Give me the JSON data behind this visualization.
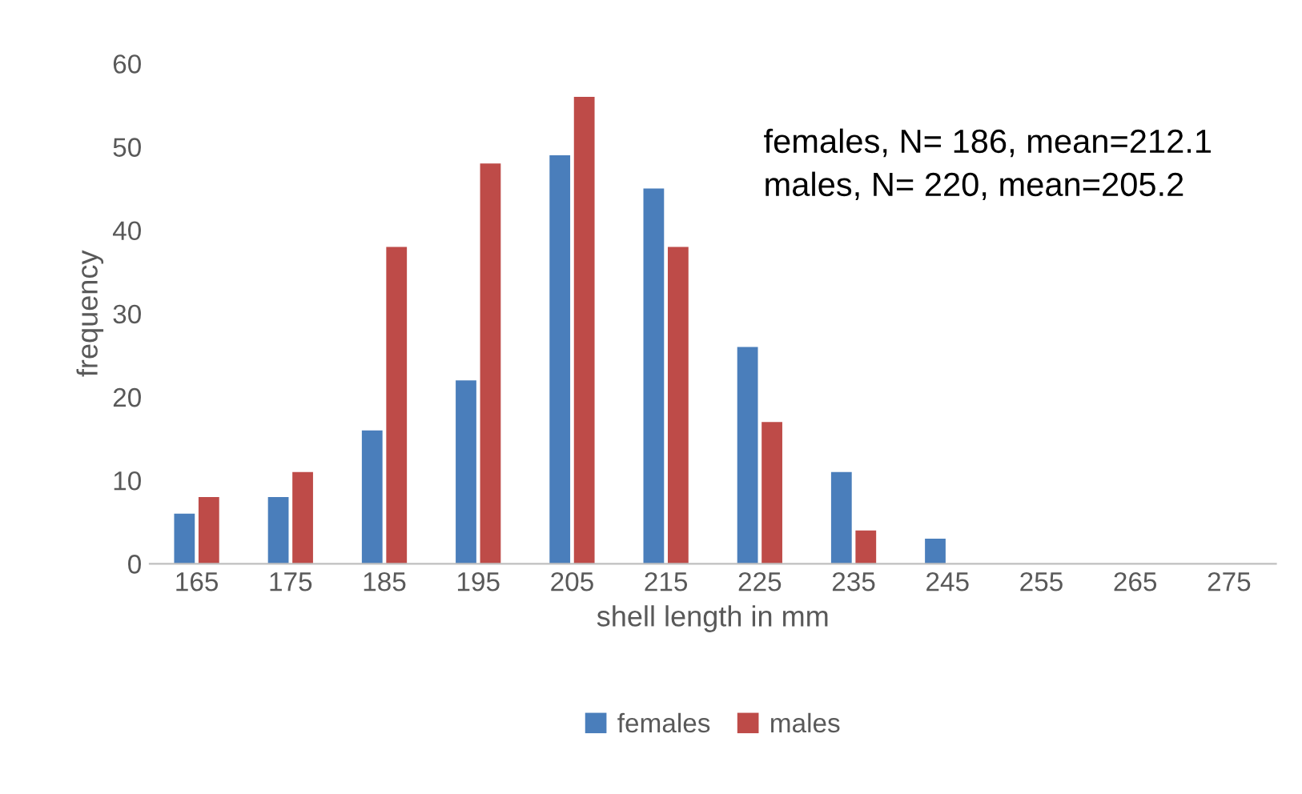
{
  "chart_data": {
    "type": "bar",
    "categories": [
      "165",
      "175",
      "185",
      "195",
      "205",
      "215",
      "225",
      "235",
      "245",
      "255",
      "265",
      "275"
    ],
    "series": [
      {
        "name": "females",
        "color": "#4a7ebb",
        "values": [
          6,
          8,
          16,
          22,
          49,
          45,
          26,
          11,
          3,
          0,
          0,
          0
        ]
      },
      {
        "name": "males",
        "color": "#be4b48",
        "values": [
          8,
          11,
          38,
          48,
          56,
          38,
          17,
          4,
          0,
          0,
          0,
          0
        ]
      }
    ],
    "xlabel": "shell length in mm",
    "ylabel": "frequency",
    "ylim": [
      0,
      60
    ],
    "yticks": [
      0,
      10,
      20,
      30,
      40,
      50,
      60
    ],
    "annotations": [
      "females, N= 186, mean=212.1\nmales, N= 220, mean=205.2"
    ],
    "legend": "bottom",
    "grid": false
  }
}
